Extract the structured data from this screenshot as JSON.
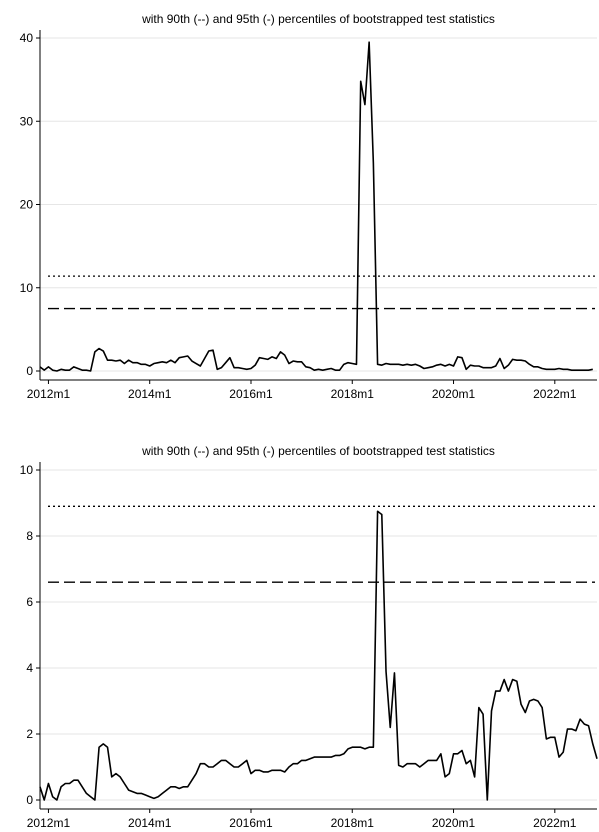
{
  "chart_data": [
    {
      "type": "line",
      "title": "with 90th (--) and 95th (-) percentiles of bootstrapped test statistics",
      "xlabel": "",
      "ylabel": "",
      "x_start": "2011m11",
      "x_end": "2022m11",
      "xlim": [
        "2011m11",
        "2022m11"
      ],
      "ylim": [
        0,
        40
      ],
      "yticks": [
        0,
        10,
        20,
        30,
        40
      ],
      "xticks": [
        "2012m1",
        "2014m1",
        "2016m1",
        "2018m1",
        "2020m1",
        "2022m1"
      ],
      "grid": true,
      "percentile_90": 7.5,
      "percentile_95": 11.4,
      "values": [
        0.5,
        0.1,
        0.5,
        0.1,
        0.0,
        0.2,
        0.1,
        0.1,
        0.5,
        0.3,
        0.1,
        0.1,
        0.0,
        2.3,
        2.7,
        2.4,
        1.3,
        1.3,
        1.2,
        1.3,
        0.9,
        1.3,
        1.0,
        1.0,
        0.8,
        0.8,
        0.6,
        0.9,
        1.0,
        1.1,
        1.0,
        1.3,
        1.0,
        1.6,
        1.7,
        1.8,
        1.2,
        0.9,
        0.6,
        1.5,
        2.4,
        2.5,
        0.2,
        0.4,
        1.0,
        1.6,
        0.4,
        0.4,
        0.3,
        0.2,
        0.3,
        0.7,
        1.6,
        1.5,
        1.4,
        1.7,
        1.5,
        2.3,
        1.9,
        0.9,
        1.2,
        1.1,
        1.1,
        0.5,
        0.4,
        0.1,
        0.2,
        0.1,
        0.2,
        0.3,
        0.1,
        0.1,
        0.8,
        1.0,
        0.9,
        0.8,
        34.8,
        32.0,
        39.5,
        25.0,
        0.8,
        0.7,
        0.9,
        0.8,
        0.8,
        0.8,
        0.7,
        0.8,
        0.7,
        0.8,
        0.6,
        0.3,
        0.4,
        0.5,
        0.7,
        0.8,
        0.6,
        0.8,
        0.6,
        1.7,
        1.6,
        0.2,
        0.7,
        0.6,
        0.6,
        0.4,
        0.4,
        0.4,
        0.6,
        1.5,
        0.3,
        0.7,
        1.4,
        1.3,
        1.3,
        1.2,
        0.8,
        0.5,
        0.5,
        0.3,
        0.2,
        0.2,
        0.2,
        0.3,
        0.2,
        0.2,
        0.1,
        0.1,
        0.1,
        0.1,
        0.1,
        0.2
      ]
    },
    {
      "type": "line",
      "title": "with 90th (--) and 95th (-) percentiles of bootstrapped test statistics",
      "xlabel": "",
      "ylabel": "",
      "x_start": "2011m11",
      "x_end": "2022m11",
      "xlim": [
        "2011m11",
        "2022m11"
      ],
      "ylim": [
        0,
        10
      ],
      "yticks": [
        0,
        2,
        4,
        6,
        8,
        10
      ],
      "xticks": [
        "2012m1",
        "2014m1",
        "2016m1",
        "2018m1",
        "2020m1",
        "2022m1"
      ],
      "grid": true,
      "percentile_90": 6.6,
      "percentile_95": 8.9,
      "values": [
        0.4,
        0.0,
        0.5,
        0.1,
        0.0,
        0.4,
        0.5,
        0.5,
        0.6,
        0.6,
        0.4,
        0.2,
        0.1,
        0.0,
        1.6,
        1.7,
        1.6,
        0.7,
        0.8,
        0.7,
        0.5,
        0.3,
        0.25,
        0.2,
        0.2,
        0.15,
        0.1,
        0.05,
        0.1,
        0.2,
        0.3,
        0.4,
        0.4,
        0.35,
        0.4,
        0.4,
        0.6,
        0.8,
        1.1,
        1.1,
        1.0,
        1.0,
        1.1,
        1.2,
        1.2,
        1.1,
        1.0,
        1.0,
        1.1,
        1.2,
        0.8,
        0.9,
        0.9,
        0.85,
        0.85,
        0.9,
        0.9,
        0.9,
        0.85,
        1.0,
        1.1,
        1.1,
        1.2,
        1.2,
        1.25,
        1.3,
        1.3,
        1.3,
        1.3,
        1.3,
        1.35,
        1.35,
        1.4,
        1.55,
        1.6,
        1.6,
        1.6,
        1.55,
        1.6,
        1.6,
        8.75,
        8.65,
        3.9,
        2.2,
        3.85,
        1.05,
        1.0,
        1.1,
        1.1,
        1.1,
        1.0,
        1.1,
        1.2,
        1.2,
        1.2,
        1.4,
        0.7,
        0.8,
        1.4,
        1.4,
        1.5,
        1.1,
        1.2,
        0.7,
        2.8,
        2.6,
        0.0,
        2.7,
        3.3,
        3.3,
        3.65,
        3.3,
        3.65,
        3.6,
        2.9,
        2.65,
        3.0,
        3.05,
        3.0,
        2.8,
        1.85,
        1.9,
        1.9,
        1.3,
        1.45,
        2.15,
        2.15,
        2.1,
        2.45,
        2.3,
        2.25,
        1.7,
        1.25
      ]
    }
  ]
}
